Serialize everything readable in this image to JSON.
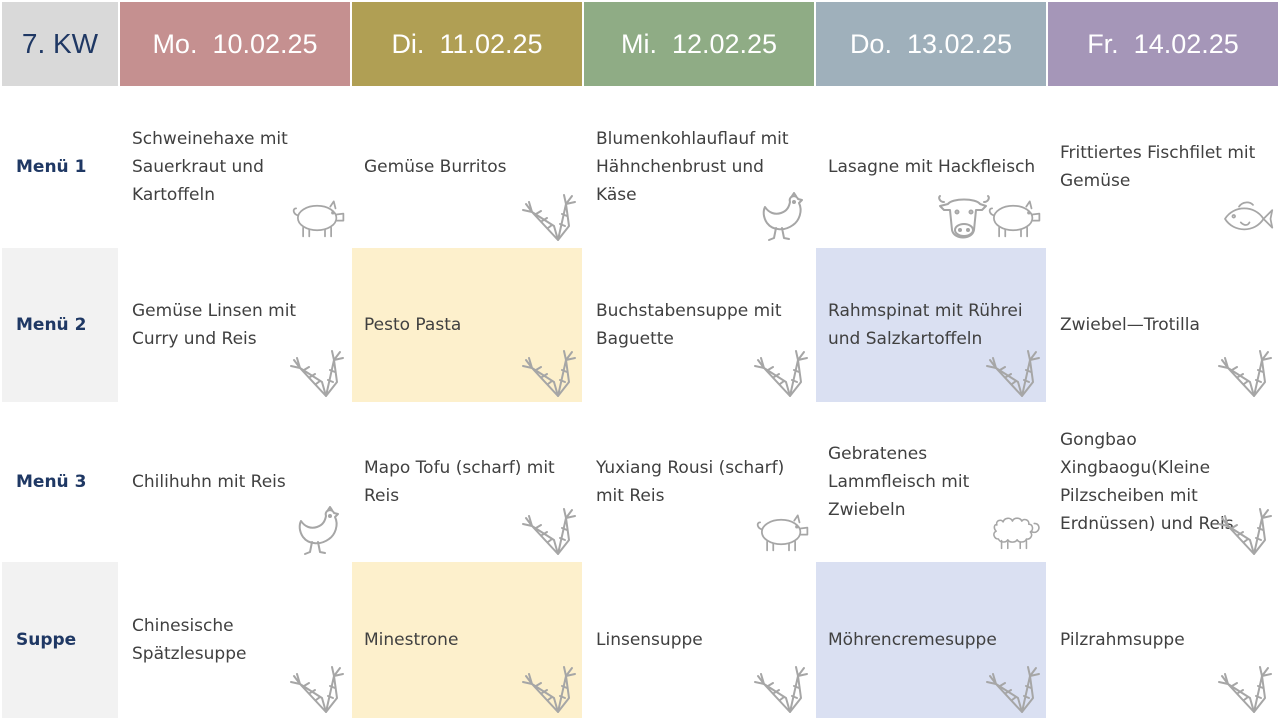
{
  "week": "7. KW",
  "colors": {
    "kw_bg": "#d9d9d9",
    "mon": "#c59090",
    "tue": "#b09f54",
    "wed": "#8fac85",
    "thu": "#9fb0bb",
    "fri": "#a596b8",
    "highlight_yellow": "#fdf0cc",
    "highlight_blue": "#dae0f2",
    "label_bg": "#f2f2f2",
    "label_text": "#1f3864",
    "icon_stroke": "#a6a6a6"
  },
  "days": [
    {
      "label": "Mo.  10.02.25"
    },
    {
      "label": "Di.  11.02.25"
    },
    {
      "label": "Mi.  12.02.25"
    },
    {
      "label": "Do.  13.02.25"
    },
    {
      "label": "Fr.  14.02.25"
    }
  ],
  "rows": [
    {
      "label": "Menü 1",
      "items": [
        {
          "text": "Schweinehaxe mit Sauerkraut und Kartoffeln",
          "icons": [
            "pig"
          ]
        },
        {
          "text": "Gemüse Burritos",
          "icons": [
            "carrot"
          ]
        },
        {
          "text": "Blumenkohlauflauf mit Hähnchenbrust und Käse",
          "icons": [
            "chicken"
          ]
        },
        {
          "text": "Lasagne mit Hackfleisch",
          "icons": [
            "cow",
            "pig"
          ]
        },
        {
          "text": "Frittiertes Fischfilet mit Gemüse",
          "icons": [
            "fish"
          ]
        }
      ]
    },
    {
      "label": "Menü 2",
      "items": [
        {
          "text": "Gemüse Linsen mit Curry und Reis",
          "icons": [
            "carrot"
          ]
        },
        {
          "text": "Pesto Pasta",
          "icons": [
            "carrot"
          ]
        },
        {
          "text": "Buchstabensuppe mit Baguette",
          "icons": [
            "carrot"
          ]
        },
        {
          "text": "Rahmspinat mit Rührei und Salzkartoffeln",
          "icons": [
            "carrot"
          ]
        },
        {
          "text": "Zwiebel—Trotilla",
          "icons": [
            "carrot"
          ]
        }
      ]
    },
    {
      "label": "Menü 3",
      "items": [
        {
          "text": "Chilihuhn mit Reis",
          "icons": [
            "chicken"
          ]
        },
        {
          "text": "Mapo Tofu (scharf) mit Reis",
          "icons": [
            "carrot"
          ]
        },
        {
          "text": "Yuxiang Rousi (scharf) mit Reis",
          "icons": [
            "pig"
          ]
        },
        {
          "text": "Gebratenes Lammfleisch mit Zwiebeln",
          "icons": [
            "sheep"
          ]
        },
        {
          "text": "Gongbao Xingbaogu(Kleine Pilzscheiben mit Erdnüssen) und Reis",
          "icons": [
            "carrot"
          ]
        }
      ]
    },
    {
      "label": "Suppe",
      "items": [
        {
          "text": "Chinesische Spätzlesuppe",
          "icons": [
            "carrot"
          ]
        },
        {
          "text": "Minestrone",
          "icons": [
            "carrot"
          ]
        },
        {
          "text": "Linsensuppe",
          "icons": [
            "carrot"
          ]
        },
        {
          "text": "Möhrencremesuppe",
          "icons": [
            "carrot"
          ]
        },
        {
          "text": "Pilzrahmsuppe",
          "icons": [
            "carrot"
          ]
        }
      ]
    }
  ]
}
